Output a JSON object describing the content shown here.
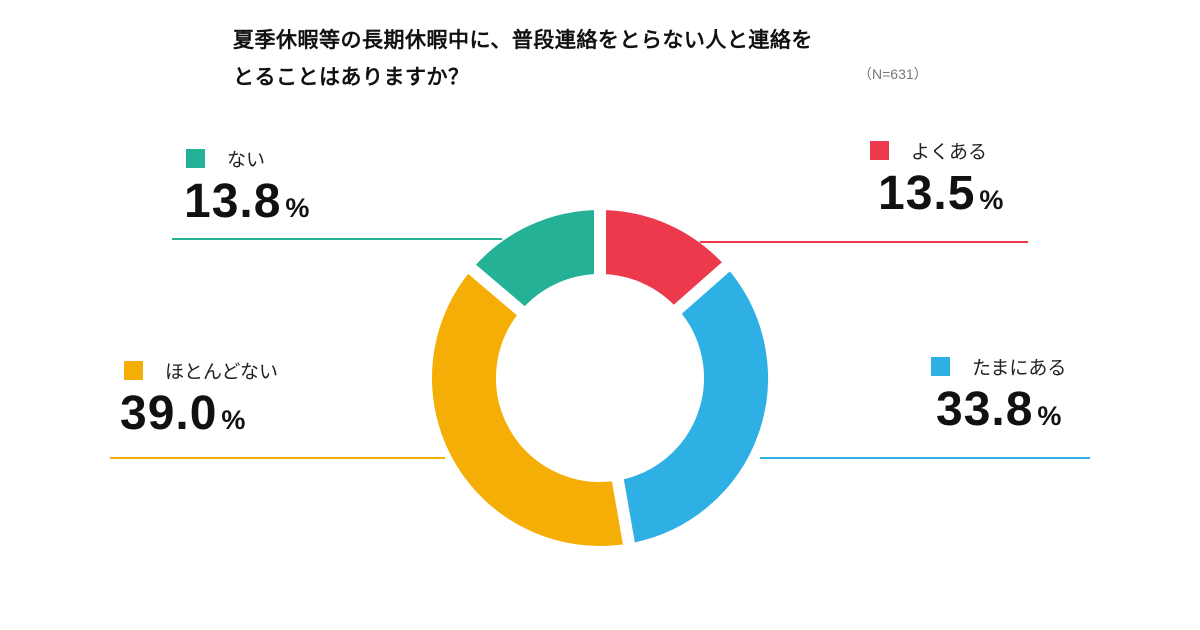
{
  "title": {
    "line1": "夏季休暇等の長期休暇中に、普段連絡をとらない人と連絡を",
    "line2": "とることはありますか？",
    "sample": "（N=631）"
  },
  "legend": [
    {
      "label": "よくある",
      "value": "13.5",
      "unit": "%",
      "color": "#EC394B"
    },
    {
      "label": "たまにある",
      "value": "33.8",
      "unit": "%",
      "color": "#2FB0E4"
    },
    {
      "label": "ほとんどない",
      "value": "39.0",
      "unit": "%",
      "color": "#F5AE05"
    },
    {
      "label": "ない",
      "value": "13.8",
      "unit": "%",
      "color": "#25B195"
    }
  ],
  "chart_data": {
    "type": "pie",
    "subtype": "donut",
    "title": "夏季休暇等の長期休暇中に、普段連絡をとらない人と連絡をとることはありますか？",
    "subtitle": "（N=631）",
    "categories": [
      "よくある",
      "たまにある",
      "ほとんどない",
      "ない"
    ],
    "values": [
      13.5,
      33.8,
      39.0,
      13.8
    ],
    "colors": [
      "#EC394B",
      "#2FB0E4",
      "#F5AE05",
      "#25B195"
    ],
    "unit": "%",
    "start_angle": "12 o'clock, clockwise",
    "legend_position": "around chart with leader lines"
  }
}
